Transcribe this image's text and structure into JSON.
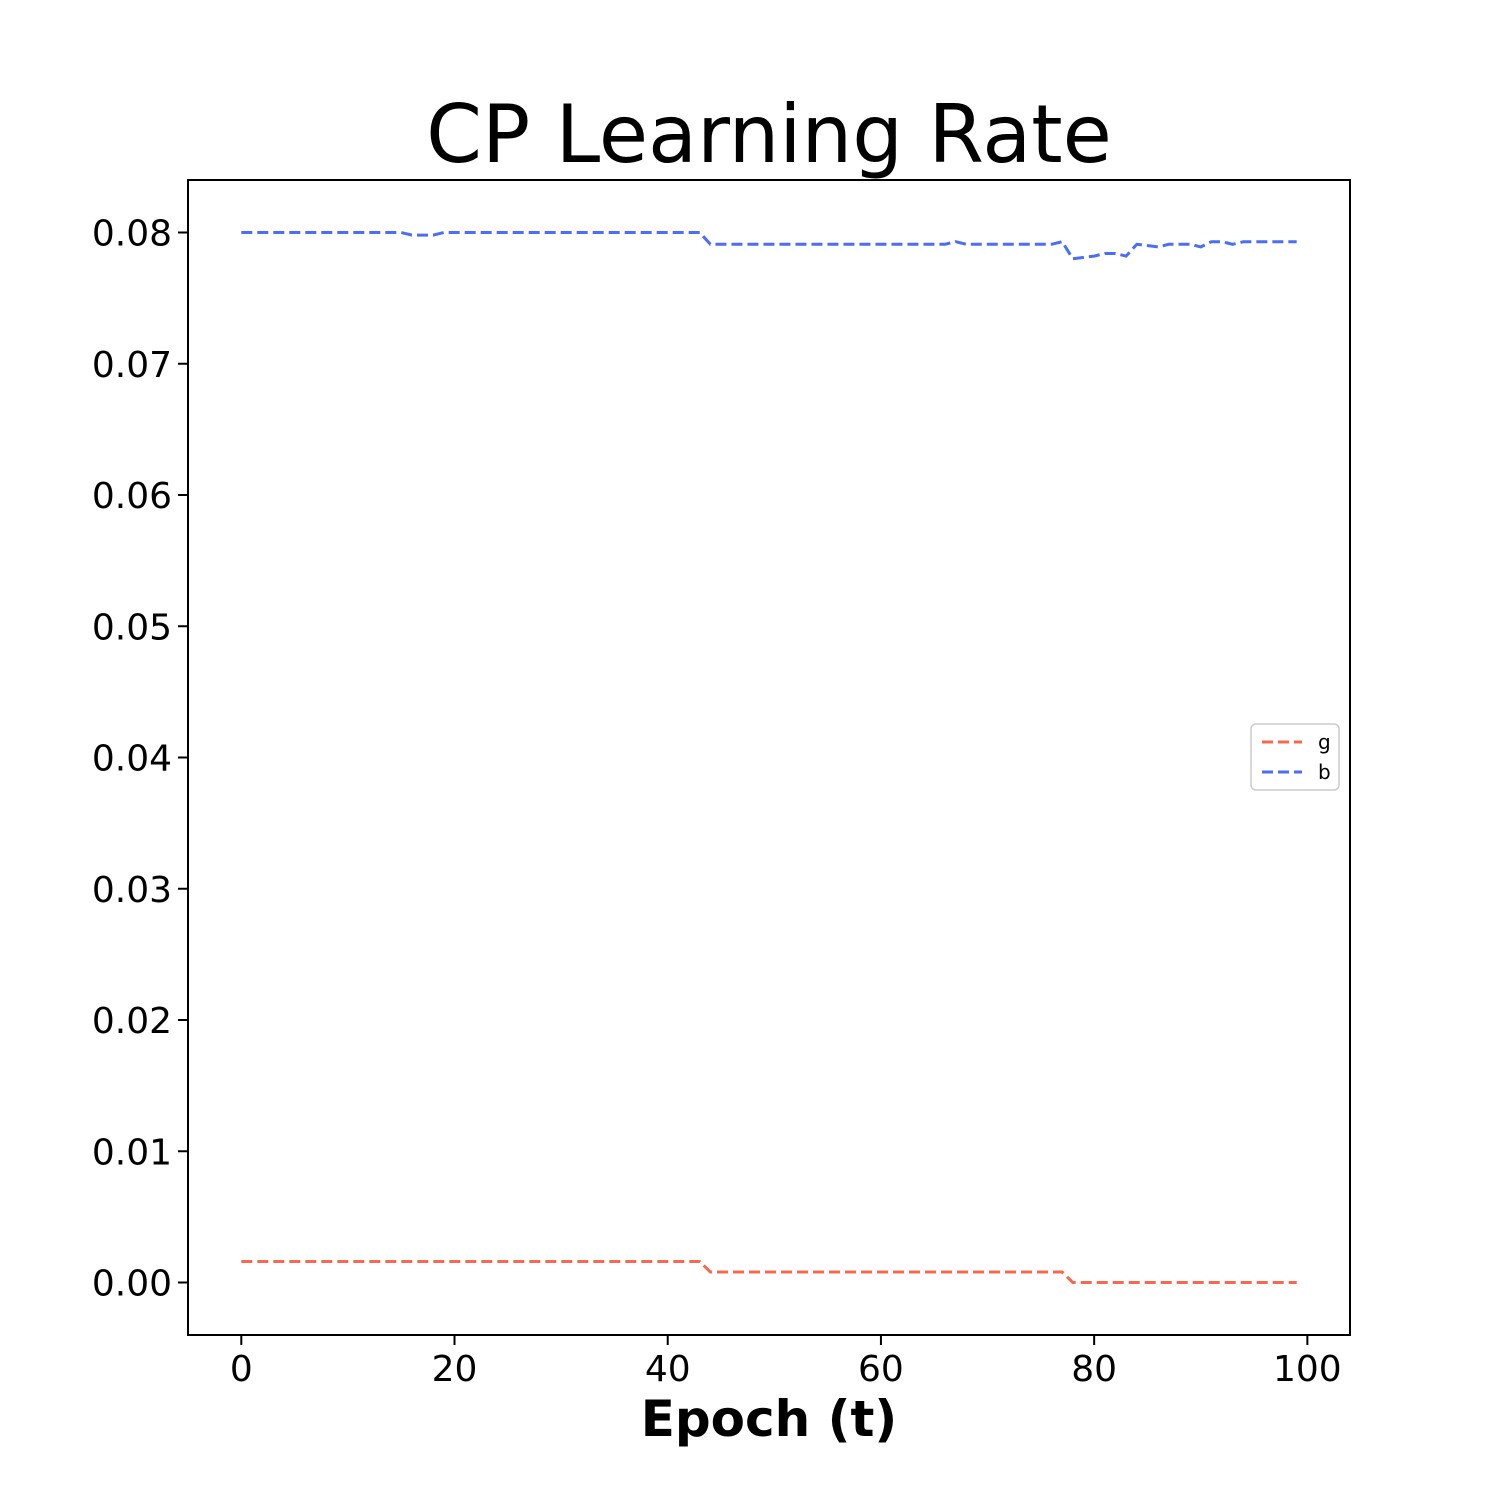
{
  "chart_data": {
    "type": "line",
    "title": "CP Learning Rate",
    "xlabel": "Epoch (t)",
    "ylabel": "",
    "xlim": [
      -5,
      104
    ],
    "ylim": [
      -0.004,
      0.084
    ],
    "xticks": [
      0,
      20,
      40,
      60,
      80,
      100
    ],
    "xtick_labels": [
      "0",
      "20",
      "40",
      "60",
      "80",
      "100"
    ],
    "yticks": [
      0.0,
      0.01,
      0.02,
      0.03,
      0.04,
      0.05,
      0.06,
      0.07,
      0.08
    ],
    "ytick_labels": [
      "0.00",
      "0.01",
      "0.02",
      "0.03",
      "0.04",
      "0.05",
      "0.06",
      "0.07",
      "0.08"
    ],
    "grid": false,
    "legend_position": "center-right",
    "series": [
      {
        "name": "g",
        "color": "#f4694f",
        "dash": "dashed",
        "x": [
          0,
          43,
          44,
          77,
          78,
          99
        ],
        "y": [
          0.0016,
          0.0016,
          0.0008,
          0.0008,
          0.0,
          0.0
        ]
      },
      {
        "name": "b",
        "color": "#4c6ef5",
        "dash": "dashed",
        "x": [
          0,
          15,
          16,
          18,
          19,
          43,
          44,
          66,
          67,
          68,
          76,
          77,
          78,
          80,
          81,
          82,
          83,
          84,
          86,
          87,
          89,
          90,
          91,
          92,
          93,
          94,
          99
        ],
        "y": [
          0.08,
          0.08,
          0.0798,
          0.0798,
          0.08,
          0.08,
          0.0791,
          0.0791,
          0.0793,
          0.0791,
          0.0791,
          0.0793,
          0.078,
          0.0782,
          0.0784,
          0.0784,
          0.0782,
          0.0791,
          0.0789,
          0.0791,
          0.0791,
          0.0789,
          0.0793,
          0.0793,
          0.0791,
          0.0793,
          0.0793
        ]
      }
    ]
  }
}
